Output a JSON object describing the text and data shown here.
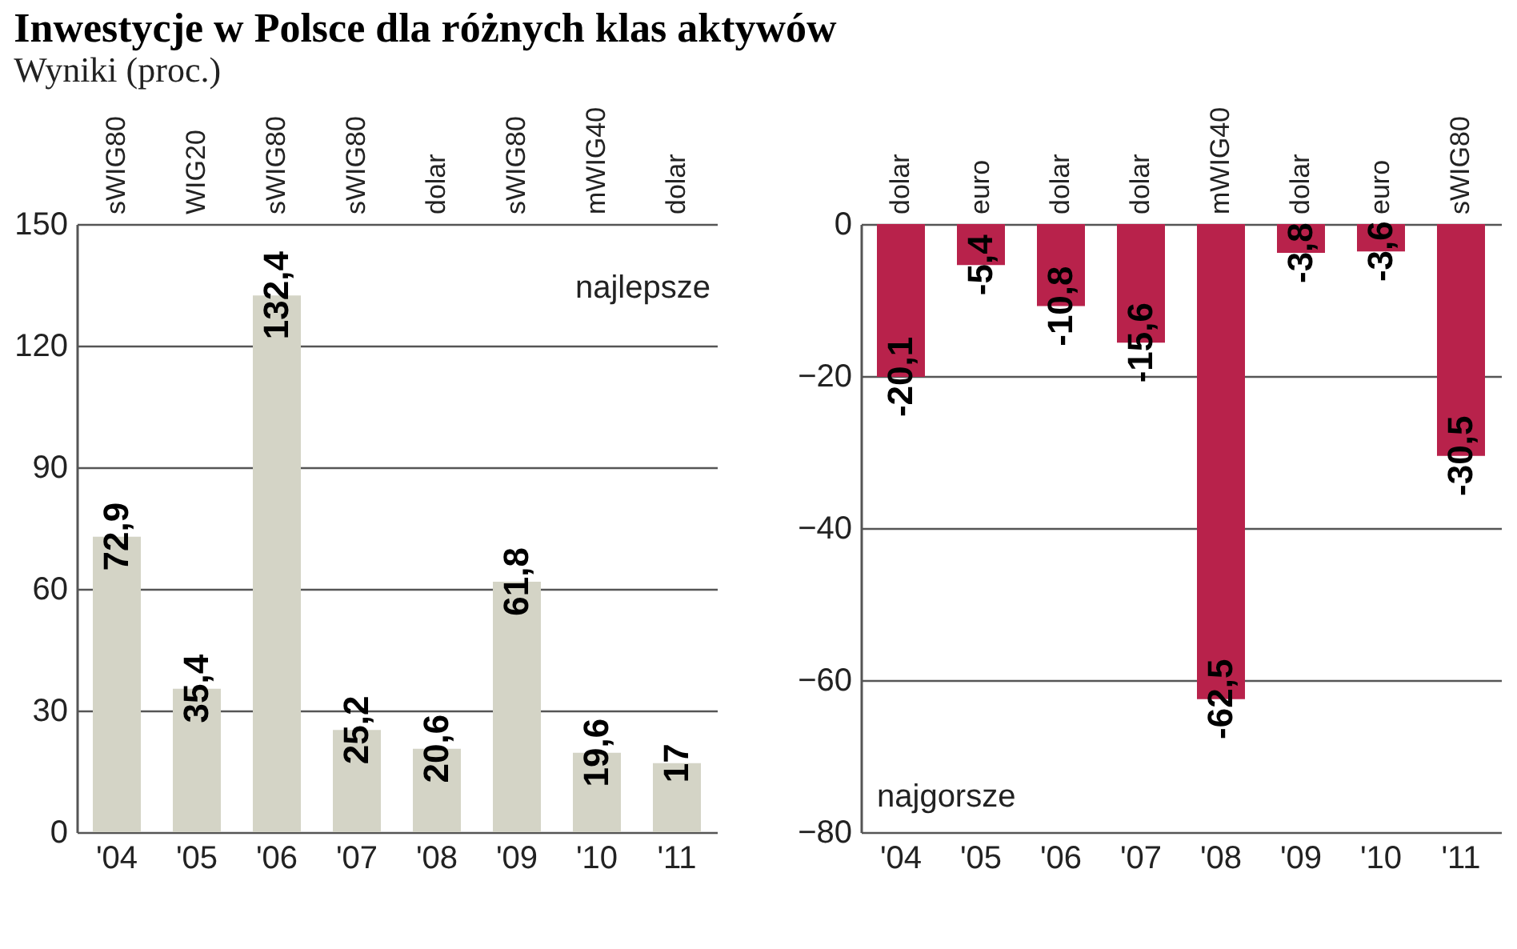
{
  "chart_data": [
    {
      "type": "bar",
      "title": "Inwestycje w Polsce dla różnych klas aktywów",
      "subtitle": "Wyniki (proc.)",
      "categories": [
        "'04",
        "'05",
        "'06",
        "'07",
        "'08",
        "'09",
        "'10",
        "'11"
      ],
      "series": [
        {
          "color": "#d4d4c6",
          "values": [
            72.9,
            35.4,
            132.4,
            25.2,
            20.6,
            61.8,
            19.6,
            17
          ],
          "value_labels": [
            "72,9",
            "35,4",
            "132,4",
            "25,2",
            "20,6",
            "61,8",
            "19,6",
            "17"
          ]
        }
      ],
      "ylim": [
        0,
        150
      ],
      "yticks": [
        0,
        30,
        60,
        90,
        120,
        150
      ],
      "grid": "y",
      "annotations": [
        "sWIG80",
        "WIG20",
        "sWIG80",
        "sWIG80",
        "dolar",
        "sWIG80",
        "mWIG40",
        "dolar",
        "najlepsze"
      ]
    },
    {
      "type": "bar",
      "categories": [
        "'04",
        "'05",
        "'06",
        "'07",
        "'08",
        "'09",
        "'10",
        "'11"
      ],
      "series": [
        {
          "color": "#b8224b",
          "values": [
            -20.1,
            -5.4,
            -10.8,
            -15.6,
            -62.5,
            -3.8,
            -3.6,
            -30.5
          ],
          "value_labels": [
            "-20,1",
            "-5,4",
            "-10,8",
            "-15,6",
            "-62,5",
            "-3,8",
            "-3,6",
            "-30,5"
          ]
        }
      ],
      "ylim": [
        -80,
        0
      ],
      "yticks": [
        -80,
        -60,
        -40,
        -20,
        0
      ],
      "grid": "y",
      "annotations": [
        "dolar",
        "euro",
        "dolar",
        "dolar",
        "mWIG40",
        "dolar",
        "euro",
        "sWIG80",
        "najgorsze"
      ]
    }
  ]
}
